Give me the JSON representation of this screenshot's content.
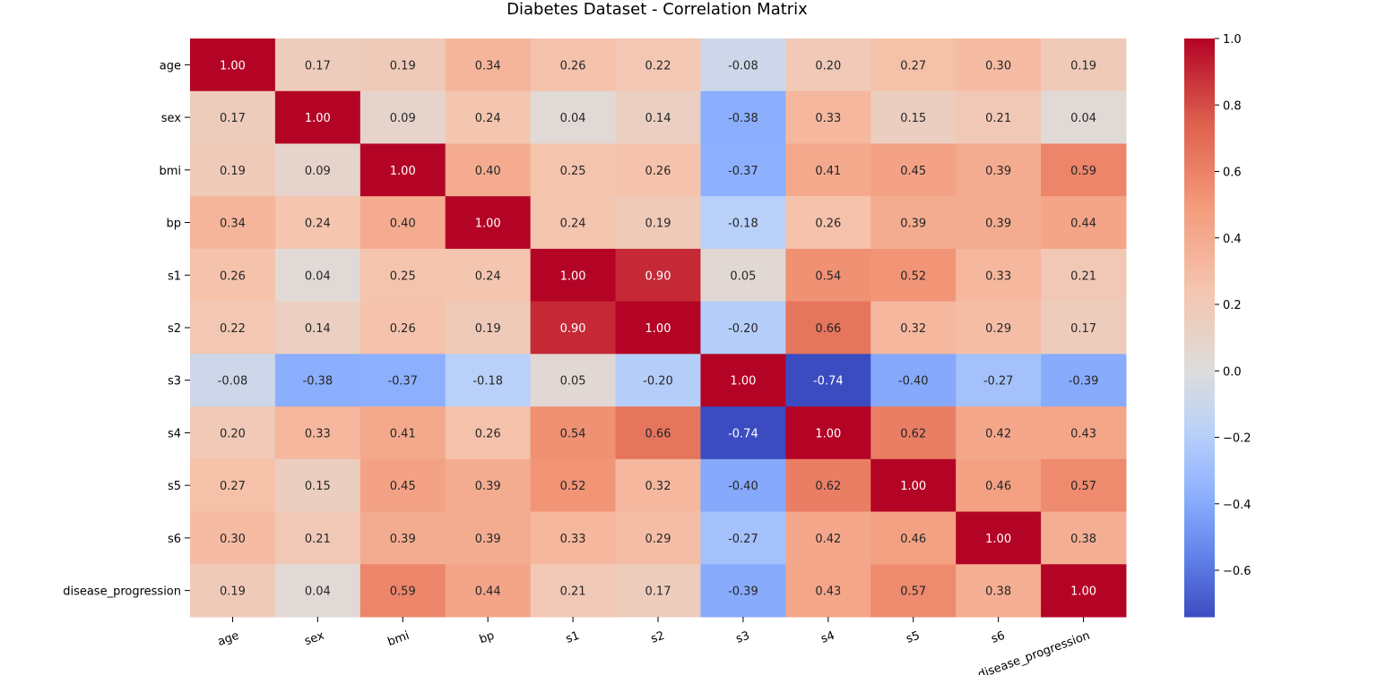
{
  "chart_data": {
    "type": "heatmap",
    "title": "Diabetes Dataset - Correlation Matrix",
    "xlabel": "",
    "ylabel": "",
    "rows": [
      "age",
      "sex",
      "bmi",
      "bp",
      "s1",
      "s2",
      "s3",
      "s4",
      "s5",
      "s6",
      "disease_progression"
    ],
    "columns": [
      "age",
      "sex",
      "bmi",
      "bp",
      "s1",
      "s2",
      "s3",
      "s4",
      "s5",
      "s6",
      "disease_progression"
    ],
    "values": [
      [
        1.0,
        0.17,
        0.19,
        0.34,
        0.26,
        0.22,
        -0.08,
        0.2,
        0.27,
        0.3,
        0.19
      ],
      [
        0.17,
        1.0,
        0.09,
        0.24,
        0.04,
        0.14,
        -0.38,
        0.33,
        0.15,
        0.21,
        0.04
      ],
      [
        0.19,
        0.09,
        1.0,
        0.4,
        0.25,
        0.26,
        -0.37,
        0.41,
        0.45,
        0.39,
        0.59
      ],
      [
        0.34,
        0.24,
        0.4,
        1.0,
        0.24,
        0.19,
        -0.18,
        0.26,
        0.39,
        0.39,
        0.44
      ],
      [
        0.26,
        0.04,
        0.25,
        0.24,
        1.0,
        0.9,
        0.05,
        0.54,
        0.52,
        0.33,
        0.21
      ],
      [
        0.22,
        0.14,
        0.26,
        0.19,
        0.9,
        1.0,
        -0.2,
        0.66,
        0.32,
        0.29,
        0.17
      ],
      [
        -0.08,
        -0.38,
        -0.37,
        -0.18,
        0.05,
        -0.2,
        1.0,
        -0.74,
        -0.4,
        -0.27,
        -0.39
      ],
      [
        0.2,
        0.33,
        0.41,
        0.26,
        0.54,
        0.66,
        -0.74,
        1.0,
        0.62,
        0.42,
        0.43
      ],
      [
        0.27,
        0.15,
        0.45,
        0.39,
        0.52,
        0.32,
        -0.4,
        0.62,
        1.0,
        0.46,
        0.57
      ],
      [
        0.3,
        0.21,
        0.39,
        0.39,
        0.33,
        0.29,
        -0.27,
        0.42,
        0.46,
        1.0,
        0.38
      ],
      [
        0.19,
        0.04,
        0.59,
        0.44,
        0.21,
        0.17,
        -0.39,
        0.43,
        0.57,
        0.38,
        1.0
      ]
    ],
    "colormap": "coolwarm",
    "vmin": -0.74,
    "vmax": 1.0,
    "colorbar_ticks": [
      "1.0",
      "0.8",
      "0.6",
      "0.4",
      "0.2",
      "0.0",
      "−0.2",
      "−0.4",
      "−0.6"
    ],
    "colorbar_tick_values": [
      1.0,
      0.8,
      0.6,
      0.4,
      0.2,
      0.0,
      -0.2,
      -0.4,
      -0.6
    ],
    "annotation_format": "0.00",
    "grid": false
  }
}
